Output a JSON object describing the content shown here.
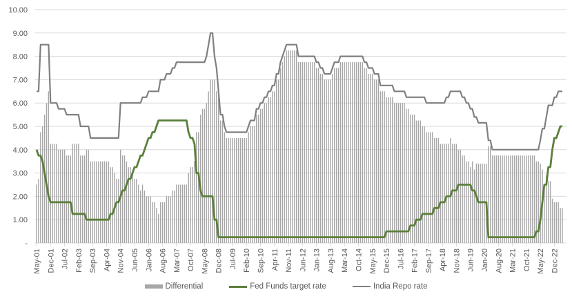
{
  "chart_data": {
    "type": "bar+line",
    "title": "",
    "xlabel": "",
    "ylabel": "",
    "ylim": [
      0,
      10
    ],
    "y_ticks": [
      "-",
      "1.00",
      "2.00",
      "3.00",
      "4.00",
      "5.00",
      "6.00",
      "7.00",
      "8.00",
      "9.00",
      "10.00"
    ],
    "grid": true,
    "legend_position": "bottom",
    "x_start": "May-01",
    "x_end": "Apr-23",
    "frequency": "monthly",
    "x_tick_labels": [
      "May-01",
      "Dec-01",
      "Jul-02",
      "Feb-03",
      "Sep-03",
      "Apr-04",
      "Nov-04",
      "Jun-05",
      "Jan-06",
      "Aug-06",
      "Mar-07",
      "Oct-07",
      "May-08",
      "Dec-08",
      "Jul-09",
      "Feb-10",
      "Sep-10",
      "Apr-11",
      "Nov-11",
      "Jun-12",
      "Jan-13",
      "Aug-13",
      "Mar-14",
      "Oct-14",
      "May-15",
      "Dec-15",
      "Jul-16",
      "Feb-17",
      "Sep-17",
      "Apr-18",
      "Nov-18",
      "Jun-19",
      "Jan-20",
      "Aug-20",
      "Mar-21",
      "Oct-21",
      "May-22",
      "Dec-22"
    ],
    "series": [
      {
        "name": "Differential",
        "kind": "bar",
        "color": "#a6a6a6",
        "derived": "India Repo rate - Fed Funds target rate"
      },
      {
        "name": "Fed Funds target rate",
        "kind": "line",
        "color": "#5b7f3a",
        "steps": [
          [
            "May-01",
            4.0
          ],
          [
            "Jun-01",
            3.75
          ],
          [
            "Aug-01",
            3.5
          ],
          [
            "Sep-01",
            3.0
          ],
          [
            "Oct-01",
            2.5
          ],
          [
            "Nov-01",
            2.0
          ],
          [
            "Dec-01",
            1.75
          ],
          [
            "Nov-02",
            1.25
          ],
          [
            "Jun-03",
            1.0
          ],
          [
            "Jun-04",
            1.25
          ],
          [
            "Aug-04",
            1.5
          ],
          [
            "Sep-04",
            1.75
          ],
          [
            "Nov-04",
            2.0
          ],
          [
            "Dec-04",
            2.25
          ],
          [
            "Feb-05",
            2.5
          ],
          [
            "Mar-05",
            2.75
          ],
          [
            "May-05",
            3.0
          ],
          [
            "Jun-05",
            3.25
          ],
          [
            "Aug-05",
            3.5
          ],
          [
            "Sep-05",
            3.75
          ],
          [
            "Nov-05",
            4.0
          ],
          [
            "Dec-05",
            4.25
          ],
          [
            "Jan-06",
            4.5
          ],
          [
            "Mar-06",
            4.75
          ],
          [
            "May-06",
            5.0
          ],
          [
            "Jun-06",
            5.25
          ],
          [
            "Sep-07",
            4.75
          ],
          [
            "Oct-07",
            4.5
          ],
          [
            "Dec-07",
            4.25
          ],
          [
            "Jan-08",
            3.0
          ],
          [
            "Mar-08",
            2.25
          ],
          [
            "Apr-08",
            2.0
          ],
          [
            "Oct-08",
            1.0
          ],
          [
            "Dec-08",
            0.25
          ],
          [
            "Dec-15",
            0.5
          ],
          [
            "Dec-16",
            0.75
          ],
          [
            "Mar-17",
            1.0
          ],
          [
            "Jun-17",
            1.25
          ],
          [
            "Dec-17",
            1.5
          ],
          [
            "Mar-18",
            1.75
          ],
          [
            "Jun-18",
            2.0
          ],
          [
            "Sep-18",
            2.25
          ],
          [
            "Dec-18",
            2.5
          ],
          [
            "Jul-19",
            2.25
          ],
          [
            "Sep-19",
            2.0
          ],
          [
            "Oct-19",
            1.75
          ],
          [
            "Mar-20",
            0.25
          ],
          [
            "Mar-22",
            0.5
          ],
          [
            "May-22",
            1.0
          ],
          [
            "Jun-22",
            1.75
          ],
          [
            "Jul-22",
            2.5
          ],
          [
            "Sep-22",
            3.25
          ],
          [
            "Nov-22",
            4.0
          ],
          [
            "Dec-22",
            4.5
          ],
          [
            "Feb-23",
            4.75
          ],
          [
            "Mar-23",
            5.0
          ]
        ]
      },
      {
        "name": "India Repo rate",
        "kind": "line",
        "color": "#7f7f7f",
        "steps": [
          [
            "May-01",
            6.5
          ],
          [
            "Jul-01",
            8.5
          ],
          [
            "Dec-01",
            6.0
          ],
          [
            "Apr-02",
            5.75
          ],
          [
            "Aug-02",
            5.5
          ],
          [
            "Mar-03",
            5.0
          ],
          [
            "Aug-03",
            4.5
          ],
          [
            "Nov-04",
            6.0
          ],
          [
            "Oct-05",
            6.25
          ],
          [
            "Jan-06",
            6.5
          ],
          [
            "Jul-06",
            7.0
          ],
          [
            "Oct-06",
            7.25
          ],
          [
            "Jan-07",
            7.5
          ],
          [
            "Mar-07",
            7.75
          ],
          [
            "Jun-08",
            8.0
          ],
          [
            "Jul-08",
            8.5
          ],
          [
            "Aug-08",
            9.0
          ],
          [
            "Oct-08",
            8.0
          ],
          [
            "Nov-08",
            7.5
          ],
          [
            "Dec-08",
            6.5
          ],
          [
            "Jan-09",
            5.5
          ],
          [
            "Mar-09",
            5.0
          ],
          [
            "Apr-09",
            4.75
          ],
          [
            "Mar-10",
            5.0
          ],
          [
            "Apr-10",
            5.25
          ],
          [
            "Jul-10",
            5.75
          ],
          [
            "Sep-10",
            6.0
          ],
          [
            "Nov-10",
            6.25
          ],
          [
            "Jan-11",
            6.5
          ],
          [
            "Mar-11",
            6.75
          ],
          [
            "May-11",
            7.25
          ],
          [
            "Jul-11",
            7.75
          ],
          [
            "Aug-11",
            8.0
          ],
          [
            "Sep-11",
            8.25
          ],
          [
            "Oct-11",
            8.5
          ],
          [
            "Apr-12",
            8.0
          ],
          [
            "Jan-13",
            7.75
          ],
          [
            "Mar-13",
            7.5
          ],
          [
            "May-13",
            7.25
          ],
          [
            "Sep-13",
            7.5
          ],
          [
            "Oct-13",
            7.75
          ],
          [
            "Jan-14",
            8.0
          ],
          [
            "Jan-15",
            7.75
          ],
          [
            "Mar-15",
            7.5
          ],
          [
            "Jun-15",
            7.25
          ],
          [
            "Sep-15",
            6.75
          ],
          [
            "Apr-16",
            6.5
          ],
          [
            "Oct-16",
            6.25
          ],
          [
            "Aug-17",
            6.0
          ],
          [
            "Jun-18",
            6.25
          ],
          [
            "Aug-18",
            6.5
          ],
          [
            "Feb-19",
            6.25
          ],
          [
            "Apr-19",
            6.0
          ],
          [
            "Jun-19",
            5.75
          ],
          [
            "Aug-19",
            5.4
          ],
          [
            "Oct-19",
            5.15
          ],
          [
            "Mar-20",
            4.4
          ],
          [
            "May-20",
            4.0
          ],
          [
            "May-22",
            4.4
          ],
          [
            "Jun-22",
            4.9
          ],
          [
            "Aug-22",
            5.4
          ],
          [
            "Sep-22",
            5.9
          ],
          [
            "Dec-22",
            6.25
          ],
          [
            "Feb-23",
            6.5
          ]
        ]
      }
    ]
  },
  "legend": {
    "differential": "Differential",
    "fed": "Fed Funds target rate",
    "repo": "India Repo rate"
  }
}
